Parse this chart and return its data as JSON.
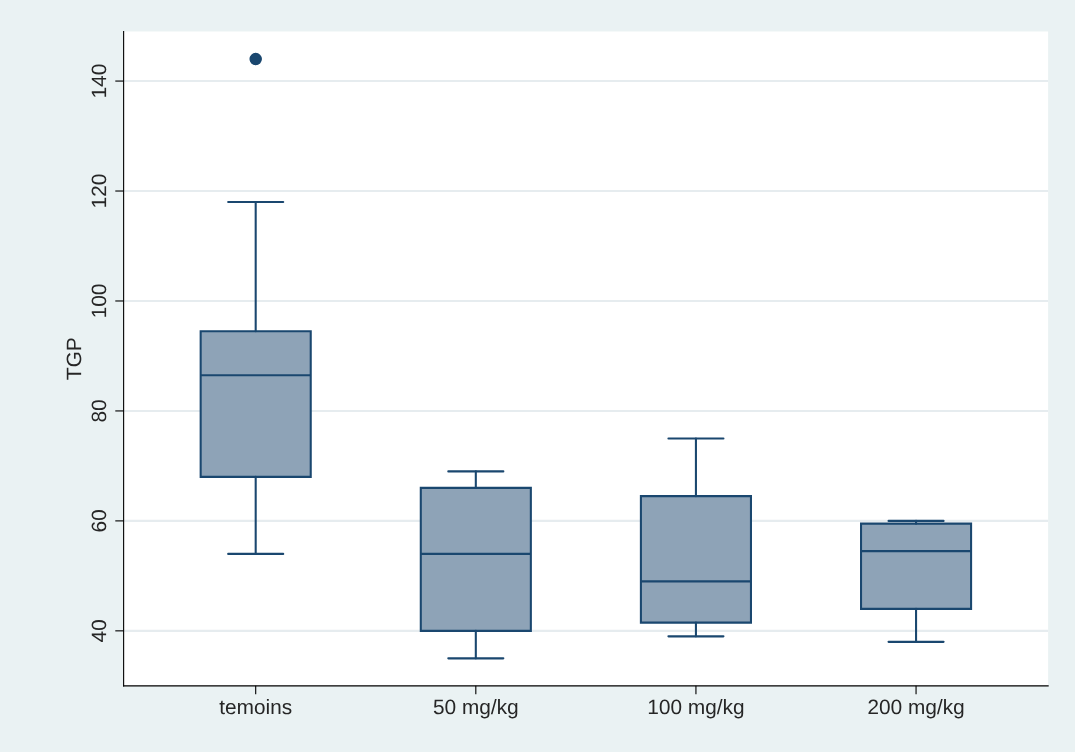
{
  "chart_data": {
    "type": "box",
    "ylabel": "TGP",
    "categories": [
      "temoins",
      "50 mg/kg",
      "100 mg/kg",
      "200 mg/kg"
    ],
    "boxes": [
      {
        "low": 54,
        "q1": 68,
        "median": 86.5,
        "q3": 94.5,
        "high": 118,
        "outliers": [
          144
        ]
      },
      {
        "low": 35,
        "q1": 40,
        "median": 54,
        "q3": 66,
        "high": 69
      },
      {
        "low": 39,
        "q1": 41.5,
        "median": 49,
        "q3": 64.5,
        "high": 75
      },
      {
        "low": 38,
        "q1": 44,
        "median": 54.5,
        "q3": 59.5,
        "high": 60
      }
    ],
    "color": "#8ea3b7",
    "ylim": [
      30,
      149
    ],
    "yticks": [
      40,
      60,
      80,
      100,
      120,
      140
    ],
    "grid": "y"
  }
}
